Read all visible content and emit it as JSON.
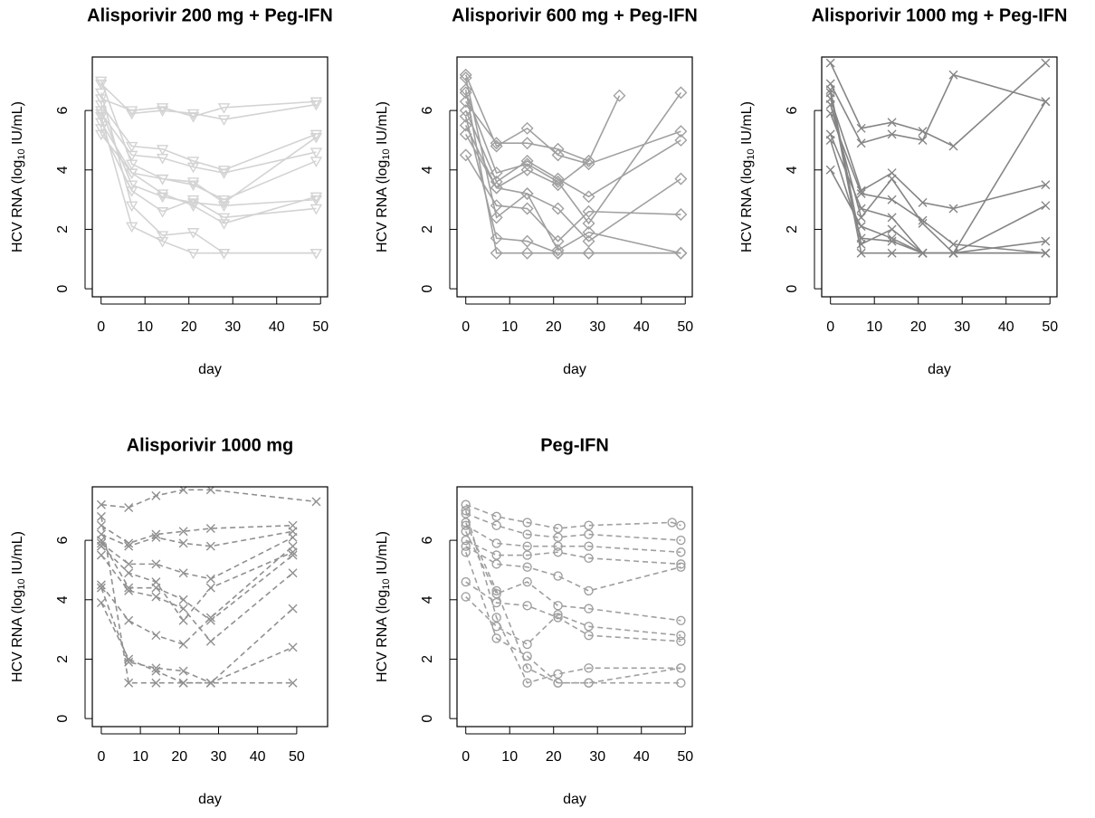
{
  "chart_data": [
    {
      "type": "line",
      "title": "Alisporivir 200 mg + Peg-IFN",
      "xlabel": "day",
      "ylabel": [
        "HCV RNA (log",
        "10",
        " IU/mL)"
      ],
      "xlim": [
        -2,
        51.6
      ],
      "ylim": [
        -0.27,
        7.8
      ],
      "xticks": [
        0,
        10,
        20,
        30,
        40,
        50
      ],
      "yticks": [
        0,
        2,
        4,
        6
      ],
      "color": "#d3d3d3",
      "marker": "triangle-down",
      "line_style": "solid",
      "series": [
        {
          "x": [
            0,
            7,
            14,
            21,
            28,
            49
          ],
          "values": [
            6.9,
            5.9,
            6.0,
            5.9,
            5.7,
            6.2
          ]
        },
        {
          "x": [
            0,
            7,
            14,
            21,
            28,
            49
          ],
          "values": [
            6.4,
            6.0,
            6.1,
            5.8,
            6.1,
            6.3
          ]
        },
        {
          "x": [
            0,
            7,
            14,
            21,
            28,
            49
          ],
          "values": [
            6.2,
            4.8,
            4.7,
            4.3,
            4.0,
            5.2
          ]
        },
        {
          "x": [
            0,
            7,
            14,
            21,
            28,
            49
          ],
          "values": [
            5.9,
            4.5,
            4.4,
            4.1,
            3.9,
            4.6
          ]
        },
        {
          "x": [
            0,
            7,
            14,
            21,
            28,
            49
          ],
          "values": [
            5.6,
            3.9,
            3.7,
            3.5,
            3.0,
            4.3
          ]
        },
        {
          "x": [
            0,
            7,
            14,
            21,
            28,
            49
          ],
          "values": [
            6.0,
            3.5,
            3.1,
            2.9,
            2.8,
            3.0
          ]
        },
        {
          "x": [
            0,
            7,
            14,
            21,
            28,
            49
          ],
          "values": [
            5.4,
            3.3,
            2.6,
            3.0,
            2.4,
            2.7
          ]
        },
        {
          "x": [
            0,
            7,
            14,
            21,
            28,
            49
          ],
          "values": [
            6.6,
            2.8,
            1.8,
            1.9,
            1.2,
            1.2
          ]
        },
        {
          "x": [
            0,
            7,
            14,
            21,
            28,
            49
          ],
          "values": [
            5.8,
            2.1,
            1.6,
            1.2,
            1.2,
            1.2
          ]
        },
        {
          "x": [
            0,
            7,
            14,
            21,
            28,
            49
          ],
          "values": [
            7.0,
            4.2,
            3.7,
            3.6,
            2.9,
            5.1
          ]
        },
        {
          "x": [
            0,
            7,
            14,
            21,
            28,
            49
          ],
          "values": [
            5.2,
            3.9,
            3.2,
            2.8,
            2.2,
            3.1
          ]
        }
      ]
    },
    {
      "type": "line",
      "title": "Alisporivir 600 mg + Peg-IFN",
      "xlabel": "day",
      "ylabel": [
        "HCV RNA (log",
        "10",
        " IU/mL)"
      ],
      "xlim": [
        -2,
        51.6
      ],
      "ylim": [
        -0.27,
        7.8
      ],
      "xticks": [
        0,
        10,
        20,
        30,
        40,
        50
      ],
      "yticks": [
        0,
        2,
        4,
        6
      ],
      "color": "#a0a0a0",
      "marker": "diamond",
      "line_style": "solid",
      "series": [
        {
          "x": [
            0,
            7,
            14,
            21,
            28,
            35
          ],
          "values": [
            6.3,
            4.9,
            4.9,
            4.7,
            4.3,
            6.5
          ]
        },
        {
          "x": [
            0,
            7,
            14,
            21,
            28,
            49
          ],
          "values": [
            7.2,
            4.8,
            5.4,
            4.5,
            4.2,
            5.3
          ]
        },
        {
          "x": [
            0,
            7,
            14,
            21,
            28,
            49
          ],
          "values": [
            6.6,
            3.9,
            4.2,
            3.6,
            2.2,
            6.6
          ]
        },
        {
          "x": [
            0,
            7,
            14,
            21,
            28,
            49
          ],
          "values": [
            6.0,
            3.6,
            4.3,
            3.7,
            3.1,
            5.0
          ]
        },
        {
          "x": [
            0,
            7,
            14,
            21,
            28,
            49
          ],
          "values": [
            5.5,
            3.4,
            3.2,
            2.7,
            1.6,
            3.7
          ]
        },
        {
          "x": [
            0,
            7,
            14,
            21,
            28,
            49
          ],
          "values": [
            4.5,
            2.8,
            2.7,
            1.6,
            2.6,
            2.5
          ]
        },
        {
          "x": [
            0,
            7,
            14,
            21,
            28,
            49
          ],
          "values": [
            5.8,
            1.7,
            1.6,
            1.2,
            1.2,
            1.2
          ]
        },
        {
          "x": [
            0,
            7,
            14,
            21,
            28,
            49
          ],
          "values": [
            6.7,
            1.2,
            1.2,
            1.2,
            1.2,
            1.2
          ]
        },
        {
          "x": [
            0,
            7,
            14,
            21,
            28,
            49
          ],
          "values": [
            7.1,
            2.4,
            3.2,
            1.3,
            1.9,
            1.2
          ]
        },
        {
          "x": [
            0,
            7,
            14,
            21,
            28
          ],
          "values": [
            5.2,
            3.4,
            4.0,
            3.5,
            4.3
          ]
        }
      ]
    },
    {
      "type": "line",
      "title": "Alisporivir 1000 mg + Peg-IFN",
      "xlabel": "day",
      "ylabel": [
        "HCV RNA (log",
        "10",
        " IU/mL)"
      ],
      "xlim": [
        -2,
        51.6
      ],
      "ylim": [
        -0.27,
        7.8
      ],
      "xticks": [
        0,
        10,
        20,
        30,
        40,
        50
      ],
      "yticks": [
        0,
        2,
        4,
        6
      ],
      "color": "#858585",
      "marker": "x",
      "line_style": "solid",
      "series": [
        {
          "x": [
            0,
            7,
            14,
            21,
            28,
            49
          ],
          "values": [
            7.6,
            5.4,
            5.6,
            5.3,
            4.8,
            7.6
          ]
        },
        {
          "x": [
            0,
            7,
            14,
            21,
            28,
            49
          ],
          "values": [
            6.9,
            4.9,
            5.2,
            5.0,
            7.2,
            6.3
          ]
        },
        {
          "x": [
            0,
            7,
            14,
            21,
            28,
            49
          ],
          "values": [
            6.4,
            3.3,
            3.9,
            2.9,
            2.7,
            3.5
          ]
        },
        {
          "x": [
            0,
            7,
            14,
            21,
            28,
            49
          ],
          "values": [
            5.9,
            3.2,
            3.0,
            2.3,
            1.5,
            1.2
          ]
        },
        {
          "x": [
            0,
            7,
            14,
            21,
            28,
            49
          ],
          "values": [
            5.2,
            2.7,
            2.4,
            1.2,
            1.2,
            2.8
          ]
        },
        {
          "x": [
            0,
            7,
            14,
            21,
            28,
            49
          ],
          "values": [
            4.0,
            2.1,
            1.7,
            1.2,
            1.2,
            1.6
          ]
        },
        {
          "x": [
            0,
            7,
            14,
            21,
            28,
            49
          ],
          "values": [
            6.6,
            1.2,
            1.2,
            1.2,
            1.2,
            1.2
          ]
        },
        {
          "x": [
            0,
            7,
            14,
            21,
            28,
            49
          ],
          "values": [
            5.0,
            1.7,
            1.6,
            1.2,
            1.2,
            1.2
          ]
        },
        {
          "x": [
            0,
            7,
            14,
            21,
            28,
            49
          ],
          "values": [
            6.2,
            2.4,
            3.7,
            2.2,
            1.2,
            6.3
          ]
        },
        {
          "x": [
            0,
            7,
            14,
            21
          ],
          "values": [
            6.7,
            1.5,
            2.0,
            1.2
          ]
        }
      ]
    },
    {
      "type": "line",
      "title": "Alisporivir 1000 mg",
      "xlabel": "day",
      "ylabel": [
        "HCV RNA (log",
        "10",
        " IU/mL)"
      ],
      "xlim": [
        -2.3,
        57.9
      ],
      "ylim": [
        -0.27,
        7.8
      ],
      "xticks": [
        0,
        10,
        20,
        30,
        40,
        50
      ],
      "yticks": [
        0,
        2,
        4,
        6
      ],
      "color": "#909090",
      "marker": "x",
      "line_style": "dashed",
      "series": [
        {
          "x": [
            0,
            7,
            14,
            21,
            28,
            55
          ],
          "values": [
            7.2,
            7.1,
            7.5,
            7.7,
            7.7,
            7.3
          ]
        },
        {
          "x": [
            0,
            7,
            14,
            21,
            28,
            49
          ],
          "values": [
            6.5,
            5.9,
            6.2,
            6.3,
            6.4,
            6.5
          ]
        },
        {
          "x": [
            0,
            7,
            14,
            21,
            28,
            49
          ],
          "values": [
            6.2,
            5.8,
            6.1,
            5.9,
            5.8,
            6.3
          ]
        },
        {
          "x": [
            0,
            7,
            14,
            21,
            28,
            49
          ],
          "values": [
            5.9,
            5.2,
            5.2,
            4.9,
            4.7,
            6.1
          ]
        },
        {
          "x": [
            0,
            7,
            14,
            21,
            28,
            49
          ],
          "values": [
            6.0,
            4.4,
            4.4,
            4.0,
            3.3,
            5.5
          ]
        },
        {
          "x": [
            0,
            7,
            14,
            21,
            28,
            49
          ],
          "values": [
            5.5,
            4.3,
            4.1,
            3.7,
            2.6,
            4.9
          ]
        },
        {
          "x": [
            0,
            7,
            14,
            21,
            28,
            49
          ],
          "values": [
            4.5,
            3.3,
            2.8,
            2.5,
            3.4,
            5.8
          ]
        },
        {
          "x": [
            0,
            7,
            14,
            21,
            28,
            49
          ],
          "values": [
            3.9,
            2.0,
            1.6,
            1.2,
            1.2,
            3.7
          ]
        },
        {
          "x": [
            0,
            7,
            14,
            21,
            28,
            49
          ],
          "values": [
            4.4,
            1.9,
            1.7,
            1.6,
            1.2,
            2.4
          ]
        },
        {
          "x": [
            0,
            7,
            14,
            21,
            28,
            49
          ],
          "values": [
            6.8,
            1.2,
            1.2,
            1.2,
            1.2,
            1.2
          ]
        },
        {
          "x": [
            0,
            7,
            14,
            21,
            28,
            49
          ],
          "values": [
            5.8,
            4.9,
            4.6,
            3.3,
            4.4,
            5.6
          ]
        }
      ]
    },
    {
      "type": "line",
      "title": "Peg-IFN",
      "xlabel": "day",
      "ylabel": [
        "HCV RNA (log",
        "10",
        " IU/mL)"
      ],
      "xlim": [
        -2,
        51.6
      ],
      "ylim": [
        -0.27,
        7.8
      ],
      "xticks": [
        0,
        10,
        20,
        30,
        40,
        50
      ],
      "yticks": [
        0,
        2,
        4,
        6
      ],
      "color": "#a0a0a0",
      "marker": "circle",
      "line_style": "dashed",
      "series": [
        {
          "x": [
            0,
            7,
            14,
            21,
            28,
            47,
            49
          ],
          "values": [
            7.2,
            6.8,
            6.6,
            6.4,
            6.5,
            6.6,
            6.5
          ]
        },
        {
          "x": [
            0,
            7,
            14,
            21,
            28,
            49
          ],
          "values": [
            6.9,
            6.5,
            6.2,
            6.1,
            6.2,
            6.0
          ]
        },
        {
          "x": [
            0,
            7,
            14,
            21,
            28,
            49
          ],
          "values": [
            6.5,
            5.9,
            5.8,
            5.8,
            5.8,
            5.6
          ]
        },
        {
          "x": [
            0,
            7,
            14,
            21,
            28,
            49
          ],
          "values": [
            6.0,
            5.5,
            5.5,
            5.6,
            5.4,
            5.2
          ]
        },
        {
          "x": [
            0,
            7,
            14,
            21,
            28,
            49
          ],
          "values": [
            5.8,
            5.2,
            5.1,
            4.8,
            4.3,
            5.1
          ]
        },
        {
          "x": [
            0,
            7,
            14,
            21,
            28,
            49
          ],
          "values": [
            6.3,
            4.2,
            4.6,
            3.8,
            3.7,
            3.3
          ]
        },
        {
          "x": [
            0,
            7,
            14,
            21,
            28,
            49
          ],
          "values": [
            4.6,
            3.9,
            3.8,
            3.4,
            2.8,
            2.6
          ]
        },
        {
          "x": [
            0,
            7,
            14,
            21,
            28,
            49
          ],
          "values": [
            4.1,
            3.1,
            2.5,
            3.5,
            3.1,
            2.8
          ]
        },
        {
          "x": [
            0,
            7,
            14,
            21,
            28,
            49
          ],
          "values": [
            5.6,
            2.7,
            2.1,
            1.2,
            1.2,
            1.7
          ]
        },
        {
          "x": [
            0,
            7,
            14,
            21,
            28,
            49
          ],
          "values": [
            7.0,
            3.4,
            1.2,
            1.5,
            1.7,
            1.7
          ]
        },
        {
          "x": [
            0,
            7,
            14,
            21,
            28,
            49
          ],
          "values": [
            6.6,
            4.3,
            1.7,
            1.2,
            1.2,
            1.2
          ]
        }
      ]
    }
  ]
}
